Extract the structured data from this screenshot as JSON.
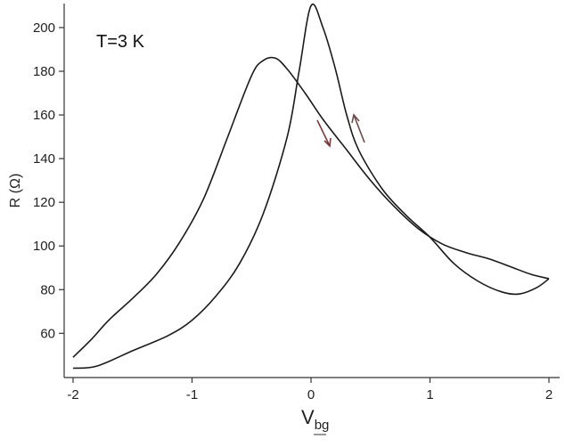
{
  "chart_data": {
    "type": "line",
    "title": "",
    "annotation": "T=3 K",
    "xlabel_main": "V",
    "xlabel_sub": "bg",
    "ylabel": "R (Ω)",
    "xlim": [
      -2,
      2
    ],
    "ylim": [
      43,
      211
    ],
    "x_ticks": [
      -2,
      -1,
      0,
      1,
      2
    ],
    "x_tick_labels": [
      "-2",
      "-1",
      "0",
      "1",
      "2"
    ],
    "y_ticks": [
      60,
      80,
      100,
      120,
      140,
      160,
      180,
      200
    ],
    "y_tick_labels": [
      "60",
      "80",
      "100",
      "120",
      "140",
      "160",
      "180",
      "200"
    ],
    "grid": false,
    "legend": "none",
    "series": [
      {
        "sweep": "down",
        "x": [
          2.0,
          1.85,
          1.7,
          1.5,
          1.3,
          1.1,
          0.9,
          0.7,
          0.5,
          0.3,
          0.1,
          -0.05,
          -0.2,
          -0.3,
          -0.4,
          -0.5,
          -0.7,
          -0.9,
          -1.1,
          -1.3,
          -1.5,
          -1.7,
          -1.85,
          -2.0
        ],
        "y": [
          85,
          87,
          90,
          94,
          97,
          101,
          108,
          118,
          130,
          144,
          158,
          170,
          181,
          186,
          185,
          178,
          150,
          122,
          102,
          87,
          76,
          66,
          57,
          49
        ]
      },
      {
        "sweep": "up",
        "x": [
          -2.0,
          -1.8,
          -1.5,
          -1.2,
          -1.0,
          -0.8,
          -0.6,
          -0.4,
          -0.2,
          -0.1,
          0.0,
          0.1,
          0.2,
          0.3,
          0.4,
          0.6,
          0.8,
          1.0,
          1.2,
          1.4,
          1.6,
          1.75,
          1.9,
          2.0
        ],
        "y": [
          44,
          45,
          52,
          59,
          66,
          77,
          92,
          115,
          150,
          180,
          210,
          200,
          182,
          160,
          144,
          126,
          114,
          104,
          92,
          84,
          79,
          78,
          81,
          85
        ]
      }
    ]
  }
}
